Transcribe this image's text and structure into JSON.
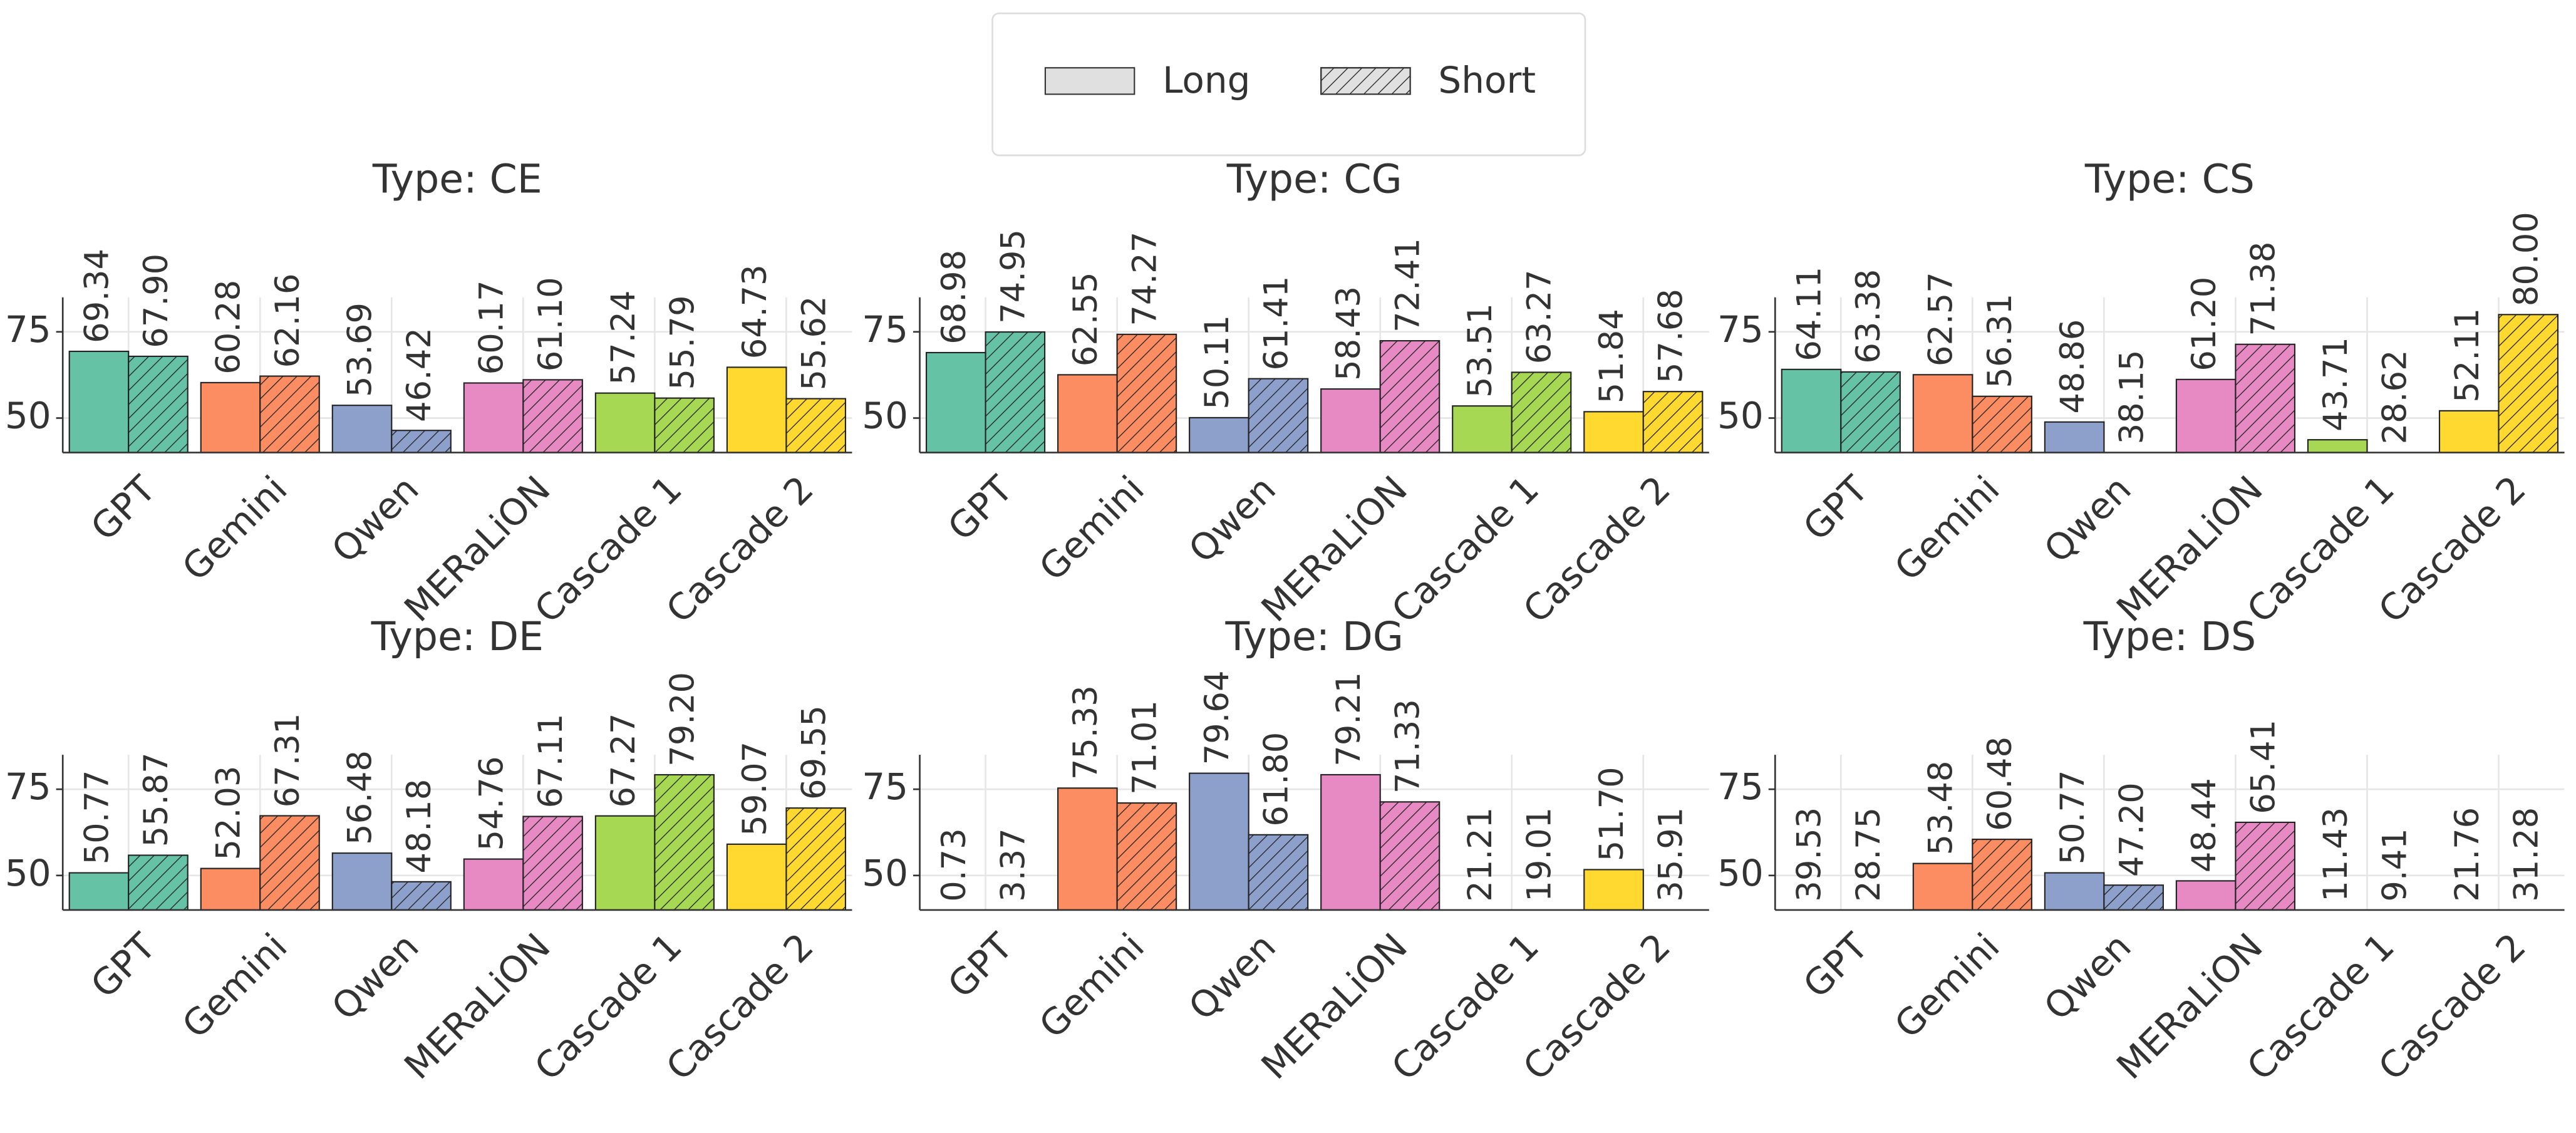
{
  "chart_data": [
    {
      "type": "bar",
      "title": "Type: CE",
      "categories": [
        "GPT",
        "Gemini",
        "Qwen",
        "MERaLiON",
        "Cascade 1",
        "Cascade 2"
      ],
      "colors": [
        "#66c2a5",
        "#fc8d62",
        "#8da0cb",
        "#e78ac3",
        "#a6d854",
        "#ffd92f"
      ],
      "series": [
        {
          "name": "Long",
          "values": [
            69.34,
            60.28,
            53.69,
            60.17,
            57.24,
            64.73
          ],
          "value_labels": [
            "69.34",
            "60.28",
            "53.69",
            "60.17",
            "57.24",
            "64.73"
          ]
        },
        {
          "name": "Short",
          "values": [
            67.9,
            62.16,
            46.42,
            61.1,
            55.79,
            55.62
          ],
          "value_labels": [
            "67.90",
            "62.16",
            "46.42",
            "61.10",
            "55.79",
            "55.62"
          ]
        }
      ],
      "ylim": [
        40,
        85
      ],
      "yticks": [
        50,
        75
      ],
      "grid": true
    },
    {
      "type": "bar",
      "title": "Type: CG",
      "categories": [
        "GPT",
        "Gemini",
        "Qwen",
        "MERaLiON",
        "Cascade 1",
        "Cascade 2"
      ],
      "colors": [
        "#66c2a5",
        "#fc8d62",
        "#8da0cb",
        "#e78ac3",
        "#a6d854",
        "#ffd92f"
      ],
      "series": [
        {
          "name": "Long",
          "values": [
            68.98,
            62.55,
            50.11,
            58.43,
            53.51,
            51.84
          ],
          "value_labels": [
            "68.98",
            "62.55",
            "50.11",
            "58.43",
            "53.51",
            "51.84"
          ]
        },
        {
          "name": "Short",
          "values": [
            74.95,
            74.27,
            61.41,
            72.41,
            63.27,
            57.68
          ],
          "value_labels": [
            "74.95",
            "74.27",
            "61.41",
            "72.41",
            "63.27",
            "57.68"
          ]
        }
      ],
      "ylim": [
        40,
        85
      ],
      "yticks": [
        50,
        75
      ],
      "grid": true
    },
    {
      "type": "bar",
      "title": "Type: CS",
      "categories": [
        "GPT",
        "Gemini",
        "Qwen",
        "MERaLiON",
        "Cascade 1",
        "Cascade 2"
      ],
      "colors": [
        "#66c2a5",
        "#fc8d62",
        "#8da0cb",
        "#e78ac3",
        "#a6d854",
        "#ffd92f"
      ],
      "series": [
        {
          "name": "Long",
          "values": [
            64.11,
            62.57,
            48.86,
            61.2,
            43.71,
            52.11
          ],
          "value_labels": [
            "64.11",
            "62.57",
            "48.86",
            "61.20",
            "43.71",
            "52.11"
          ]
        },
        {
          "name": "Short",
          "values": [
            63.38,
            56.31,
            38.15,
            71.38,
            28.62,
            80
          ],
          "value_labels": [
            "63.38",
            "56.31",
            "38.15",
            "71.38",
            "28.62",
            "80.00"
          ]
        }
      ],
      "ylim": [
        40,
        85
      ],
      "yticks": [
        50,
        75
      ],
      "grid": true
    },
    {
      "type": "bar",
      "title": "Type: DE",
      "categories": [
        "GPT",
        "Gemini",
        "Qwen",
        "MERaLiON",
        "Cascade 1",
        "Cascade 2"
      ],
      "colors": [
        "#66c2a5",
        "#fc8d62",
        "#8da0cb",
        "#e78ac3",
        "#a6d854",
        "#ffd92f"
      ],
      "series": [
        {
          "name": "Long",
          "values": [
            50.77,
            52.03,
            56.48,
            54.76,
            67.27,
            59.07
          ],
          "value_labels": [
            "50.77",
            "52.03",
            "56.48",
            "54.76",
            "67.27",
            "59.07"
          ]
        },
        {
          "name": "Short",
          "values": [
            55.87,
            67.31,
            48.18,
            67.11,
            79.2,
            69.55
          ],
          "value_labels": [
            "55.87",
            "67.31",
            "48.18",
            "67.11",
            "79.20",
            "69.55"
          ]
        }
      ],
      "ylim": [
        40,
        85
      ],
      "yticks": [
        50,
        75
      ],
      "grid": true
    },
    {
      "type": "bar",
      "title": "Type: DG",
      "categories": [
        "GPT",
        "Gemini",
        "Qwen",
        "MERaLiON",
        "Cascade 1",
        "Cascade 2"
      ],
      "colors": [
        "#66c2a5",
        "#fc8d62",
        "#8da0cb",
        "#e78ac3",
        "#a6d854",
        "#ffd92f"
      ],
      "series": [
        {
          "name": "Long",
          "values": [
            0.73,
            75.33,
            79.64,
            79.21,
            21.21,
            51.7
          ],
          "value_labels": [
            "0.73",
            "75.33",
            "79.64",
            "79.21",
            "21.21",
            "51.70"
          ]
        },
        {
          "name": "Short",
          "values": [
            3.37,
            71.01,
            61.8,
            71.33,
            19.01,
            35.91
          ],
          "value_labels": [
            "3.37",
            "71.01",
            "61.80",
            "71.33",
            "19.01",
            "35.91"
          ]
        }
      ],
      "ylim": [
        40,
        85
      ],
      "yticks": [
        50,
        75
      ],
      "grid": true
    },
    {
      "type": "bar",
      "title": "Type: DS",
      "categories": [
        "GPT",
        "Gemini",
        "Qwen",
        "MERaLiON",
        "Cascade 1",
        "Cascade 2"
      ],
      "colors": [
        "#66c2a5",
        "#fc8d62",
        "#8da0cb",
        "#e78ac3",
        "#a6d854",
        "#ffd92f"
      ],
      "series": [
        {
          "name": "Long",
          "values": [
            39.53,
            53.48,
            50.77,
            48.44,
            11.43,
            21.76
          ],
          "value_labels": [
            "39.53",
            "53.48",
            "50.77",
            "48.44",
            "11.43",
            "21.76"
          ]
        },
        {
          "name": "Short",
          "values": [
            28.75,
            60.48,
            47.2,
            65.41,
            9.41,
            31.28
          ],
          "value_labels": [
            "28.75",
            "60.48",
            "47.20",
            "65.41",
            "9.41",
            "31.28"
          ]
        }
      ],
      "ylim": [
        40,
        85
      ],
      "yticks": [
        50,
        75
      ],
      "grid": true
    }
  ]
}
